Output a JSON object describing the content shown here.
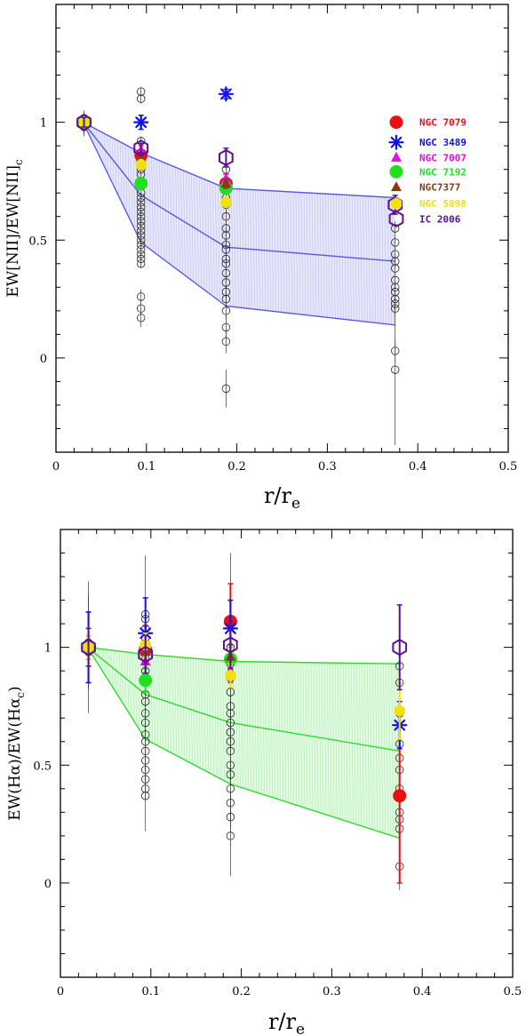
{
  "chart_data": [
    {
      "type": "scatter",
      "xlabel": "r/r_e",
      "ylabel": "EW[NII]/EW[NII]_c",
      "xlim": [
        0,
        0.5
      ],
      "ylim": [
        -0.4,
        1.5
      ],
      "xticks": [
        "0",
        "0.1",
        "0.2",
        "0.3",
        "0.4",
        "0.5"
      ],
      "yticks": [
        "0",
        "0.5",
        "1"
      ],
      "band": {
        "color": "#5858e0",
        "x": [
          0.03,
          0.094,
          0.188,
          0.375
        ],
        "upper": [
          1.0,
          0.87,
          0.72,
          0.68
        ],
        "middle": [
          1.0,
          0.69,
          0.47,
          0.41
        ],
        "lower": [
          1.0,
          0.49,
          0.22,
          0.14
        ]
      },
      "sample_points": [
        {
          "x": 0.031,
          "y": [
            1.0,
            0.99,
            0.98,
            1.01
          ],
          "err": [
            0.04,
            0.04,
            0.04,
            0.04
          ]
        },
        {
          "x": 0.094,
          "y": [
            1.13,
            1.1,
            0.92,
            0.86,
            0.84,
            0.82,
            0.8,
            0.78,
            0.75,
            0.73,
            0.7,
            0.68,
            0.66,
            0.64,
            0.62,
            0.6,
            0.58,
            0.56,
            0.54,
            0.52,
            0.5,
            0.48,
            0.46,
            0.44,
            0.42,
            0.4,
            0.26,
            0.21,
            0.17
          ],
          "err": [
            0.02,
            0.02,
            0.02,
            0.02,
            0.02,
            0.02,
            0.02,
            0.02,
            0.02,
            0.02,
            0.02,
            0.02,
            0.02,
            0.02,
            0.02,
            0.02,
            0.02,
            0.02,
            0.02,
            0.02,
            0.02,
            0.02,
            0.02,
            0.02,
            0.02,
            0.02,
            0.03,
            0.03,
            0.04
          ]
        },
        {
          "x": 0.188,
          "y": [
            0.8,
            0.74,
            0.72,
            0.68,
            0.65,
            0.6,
            0.55,
            0.52,
            0.48,
            0.46,
            0.42,
            0.4,
            0.36,
            0.32,
            0.28,
            0.25,
            0.2,
            0.13,
            0.07,
            -0.13
          ],
          "err": [
            0.03,
            0.03,
            0.03,
            0.03,
            0.03,
            0.03,
            0.03,
            0.03,
            0.03,
            0.03,
            0.03,
            0.03,
            0.03,
            0.03,
            0.03,
            0.03,
            0.04,
            0.05,
            0.05,
            0.08
          ]
        },
        {
          "x": 0.375,
          "y": [
            0.55,
            0.49,
            0.44,
            0.41,
            0.38,
            0.33,
            0.3,
            0.28,
            0.25,
            0.23,
            0.21,
            0.03,
            -0.05
          ],
          "err": [
            0.03,
            0.03,
            0.03,
            0.03,
            0.03,
            0.03,
            0.03,
            0.03,
            0.03,
            0.03,
            0.03,
            0.05,
            0.32
          ]
        }
      ],
      "series": [
        {
          "name": "NGC 7079",
          "color": "#e81010",
          "marker": "filled-circle",
          "points": [
            [
              0.031,
              1.0,
              0.03
            ],
            [
              0.094,
              0.86,
              0.02
            ],
            [
              0.188,
              0.74,
              0.04
            ]
          ]
        },
        {
          "name": "NGC 3489",
          "color": "#1010e8",
          "marker": "asterisk",
          "points": [
            [
              0.031,
              1.0,
              0.03
            ],
            [
              0.094,
              1.0,
              0.03
            ],
            [
              0.188,
              1.12,
              0.02
            ]
          ]
        },
        {
          "name": "NGC 7007",
          "color": "#e010e0",
          "marker": "triangle",
          "points": [
            [
              0.031,
              1.0,
              0.02
            ],
            [
              0.094,
              0.88,
              0.02
            ],
            [
              0.188,
              0.76,
              0.02
            ]
          ]
        },
        {
          "name": "NGC 7192",
          "color": "#20e020",
          "marker": "filled-circle",
          "points": [
            [
              0.031,
              1.0,
              0.02
            ],
            [
              0.094,
              0.74,
              0.02
            ],
            [
              0.188,
              0.72,
              0.02
            ]
          ]
        },
        {
          "name": "NGC7377",
          "color": "#8b3a10",
          "marker": "triangle",
          "points": [
            [
              0.031,
              1.0,
              0.02
            ],
            [
              0.094,
              0.85,
              0.02
            ],
            [
              0.188,
              0.74,
              0.02
            ]
          ]
        },
        {
          "name": "NGC 5898",
          "color": "#f0e010",
          "marker": "filled-hexagon",
          "points": [
            [
              0.031,
              1.0,
              0.02
            ],
            [
              0.094,
              0.82,
              0.02
            ],
            [
              0.188,
              0.66,
              0.02
            ]
          ]
        },
        {
          "name": "IC 2006",
          "color": "#5a1090",
          "marker": "open-hexagon",
          "points": [
            [
              0.031,
              1.0,
              0.02
            ],
            [
              0.094,
              0.89,
              0.02
            ],
            [
              0.188,
              0.85,
              0.04
            ],
            [
              0.375,
              0.65,
              0.04
            ]
          ]
        }
      ],
      "legend": {
        "placement": "right",
        "entries": [
          {
            "name": "NGC 7079",
            "color": "#e81010",
            "marker": "filled-circle",
            "y": 1.0
          },
          {
            "name": "NGC 3489",
            "color": "#1010e8",
            "marker": "asterisk",
            "y": 0.915
          },
          {
            "name": "NGC 7007",
            "color": "#e010e0",
            "marker": "triangle",
            "y": 0.85
          },
          {
            "name": "NGC 7192",
            "color": "#20e020",
            "marker": "filled-circle",
            "y": 0.79
          },
          {
            "name": "NGC7377",
            "color": "#8b3a10",
            "marker": "triangle",
            "y": 0.725
          },
          {
            "name": "NGC 5898",
            "color": "#f0e010",
            "marker": "filled-hexagon",
            "y": 0.655
          },
          {
            "name": "IC 2006",
            "color": "#5a1090",
            "marker": "open-hexagon",
            "y": 0.59
          }
        ]
      }
    },
    {
      "type": "scatter",
      "xlabel": "r/r_e",
      "ylabel": "EW(Hα)/EW(Hα_c)",
      "xlim": [
        0,
        0.5
      ],
      "ylim": [
        -0.4,
        1.5
      ],
      "xticks": [
        "0",
        "0.1",
        "0.2",
        "0.3",
        "0.4",
        "0.5"
      ],
      "yticks": [
        "0",
        "0.5",
        "1"
      ],
      "band": {
        "color": "#30d830",
        "x": [
          0.03,
          0.094,
          0.188,
          0.375
        ],
        "upper": [
          1.0,
          0.97,
          0.94,
          0.93
        ],
        "middle": [
          1.0,
          0.8,
          0.68,
          0.56
        ],
        "lower": [
          1.0,
          0.61,
          0.42,
          0.19
        ]
      },
      "sample_points": [
        {
          "x": 0.031,
          "y": [
            1.02,
            1.01,
            1.0,
            0.99,
            0.98
          ],
          "err": [
            0.2,
            0.12,
            0.28,
            0.1,
            0.15
          ]
        },
        {
          "x": 0.094,
          "y": [
            1.14,
            1.12,
            1.08,
            1.04,
            1.0,
            0.95,
            0.9,
            0.85,
            0.8,
            0.77,
            0.72,
            0.68,
            0.63,
            0.6,
            0.56,
            0.52,
            0.48,
            0.44,
            0.4,
            0.37
          ],
          "err": [
            0.25,
            0.05,
            0.05,
            0.05,
            0.05,
            0.05,
            0.05,
            0.05,
            0.05,
            0.05,
            0.05,
            0.05,
            0.05,
            0.05,
            0.05,
            0.05,
            0.05,
            0.05,
            0.05,
            0.15
          ]
        },
        {
          "x": 0.188,
          "y": [
            1.0,
            0.93,
            0.87,
            0.81,
            0.75,
            0.72,
            0.68,
            0.64,
            0.6,
            0.56,
            0.5,
            0.46,
            0.4,
            0.34,
            0.28,
            0.2
          ],
          "err": [
            0.4,
            0.05,
            0.05,
            0.05,
            0.05,
            0.05,
            0.05,
            0.05,
            0.05,
            0.05,
            0.05,
            0.05,
            0.05,
            0.05,
            0.05,
            0.17
          ]
        },
        {
          "x": 0.375,
          "y": [
            0.92,
            0.85,
            0.72,
            0.59,
            0.53,
            0.48,
            0.4,
            0.36,
            0.3,
            0.27,
            0.23,
            0.07
          ],
          "err": [
            0.05,
            0.05,
            0.05,
            0.05,
            0.05,
            0.05,
            0.05,
            0.05,
            0.05,
            0.05,
            0.05,
            0.1
          ]
        }
      ],
      "series": [
        {
          "name": "NGC 7079",
          "color": "#e81010",
          "marker": "filled-circle",
          "points": [
            [
              0.031,
              1.0,
              0.15
            ],
            [
              0.094,
              0.99,
              0.1
            ],
            [
              0.188,
              1.11,
              0.16
            ],
            [
              0.375,
              0.37,
              0.37
            ]
          ]
        },
        {
          "name": "NGC 3489",
          "color": "#1010e8",
          "marker": "asterisk",
          "points": [
            [
              0.031,
              1.0,
              0.15
            ],
            [
              0.094,
              1.06,
              0.15
            ],
            [
              0.188,
              1.08,
              0.12
            ],
            [
              0.375,
              0.67,
              0.1
            ]
          ]
        },
        {
          "name": "NGC 7007",
          "color": "#e010e0",
          "marker": "triangle",
          "points": [
            [
              0.031,
              1.0,
              0.05
            ],
            [
              0.094,
              0.94,
              0.05
            ],
            [
              0.188,
              0.9,
              0.05
            ]
          ]
        },
        {
          "name": "NGC 7192",
          "color": "#20e020",
          "marker": "filled-circle",
          "points": [
            [
              0.031,
              1.0,
              0.05
            ],
            [
              0.094,
              0.86,
              0.05
            ],
            [
              0.188,
              0.95,
              0.05
            ]
          ]
        },
        {
          "name": "NGC7377",
          "color": "#8b3a10",
          "marker": "triangle",
          "points": [
            [
              0.031,
              1.0,
              0.05
            ],
            [
              0.094,
              0.98,
              0.05
            ],
            [
              0.188,
              0.96,
              0.05
            ]
          ]
        },
        {
          "name": "NGC 5898",
          "color": "#f0e010",
          "marker": "filled-hexagon",
          "points": [
            [
              0.031,
              1.0,
              0.05
            ],
            [
              0.094,
              1.01,
              0.05
            ],
            [
              0.188,
              0.88,
              0.05
            ],
            [
              0.375,
              0.73,
              0.12
            ]
          ]
        },
        {
          "name": "IC 2006",
          "color": "#5a1090",
          "marker": "open-hexagon",
          "points": [
            [
              0.031,
              1.0,
              0.08
            ],
            [
              0.094,
              0.97,
              0.08
            ],
            [
              0.188,
              1.01,
              0.1
            ],
            [
              0.375,
              1.0,
              0.18
            ]
          ]
        }
      ]
    }
  ]
}
